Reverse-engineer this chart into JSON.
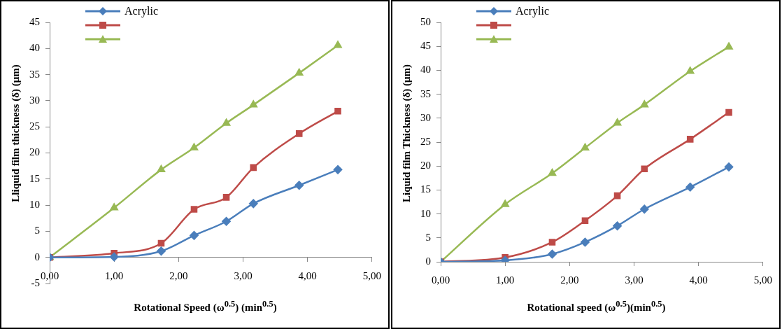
{
  "chart_data": [
    {
      "type": "line",
      "xlabel": "Rotational Speed (ω$^{0.5}$) (min$^{0.5}$)",
      "ylabel": "Lliquid film thickness (δ) (μm)",
      "x": [
        0,
        1,
        1.73,
        2.24,
        2.74,
        3.16,
        3.87,
        4.47
      ],
      "series": [
        {
          "name": "Acrylic",
          "color": "#4a7ebb",
          "marker": "diamond",
          "values": [
            0,
            0.1,
            1.2,
            4.2,
            6.9,
            10.3,
            13.8,
            16.8
          ]
        },
        {
          "color": "#be4b48",
          "marker": "square",
          "values": [
            0,
            0.8,
            2.7,
            9.2,
            11.5,
            17.2,
            23.7,
            28
          ]
        },
        {
          "color": "#98b954",
          "marker": "triangle",
          "values": [
            0,
            9.5,
            16.8,
            21,
            25.7,
            29.2,
            35.3,
            40.6
          ]
        }
      ],
      "xlim": [
        0,
        5
      ],
      "xticks": [
        {
          "value": 0,
          "label": "0,00"
        },
        {
          "value": 1,
          "label": "1,00"
        },
        {
          "value": 2,
          "label": "2,00"
        },
        {
          "value": 3,
          "label": "3,00"
        },
        {
          "value": 4,
          "label": "4,00"
        },
        {
          "value": 5,
          "label": "5,00"
        }
      ],
      "ylim": [
        -5,
        45
      ],
      "yticks": [
        -5,
        0,
        5,
        10,
        15,
        20,
        25,
        30,
        35,
        40,
        45
      ],
      "grid": false,
      "legend": "top left"
    },
    {
      "type": "line",
      "xlabel": "Rotational speed (ω$^{0.5}$)(min$^{0.5}$)",
      "ylabel": "Liquid film Thickness (δ) (μm)",
      "x": [
        0,
        1,
        1.73,
        2.24,
        2.74,
        3.16,
        3.87,
        4.47
      ],
      "series": [
        {
          "name": "Acrylic",
          "color": "#4a7ebb",
          "marker": "diamond",
          "values": [
            0,
            0.3,
            1.6,
            4.1,
            7.5,
            11,
            15.6,
            19.8
          ]
        },
        {
          "color": "#be4b48",
          "marker": "square",
          "values": [
            0,
            0.9,
            4.1,
            8.6,
            13.8,
            19.4,
            25.6,
            31.2
          ]
        },
        {
          "color": "#98b954",
          "marker": "triangle",
          "values": [
            0,
            12,
            18.5,
            23.8,
            29,
            32.8,
            39.8,
            44.9
          ]
        }
      ],
      "xlim": [
        0,
        5
      ],
      "xticks": [
        {
          "value": 0,
          "label": "0,00"
        },
        {
          "value": 1,
          "label": "1,00"
        },
        {
          "value": 2,
          "label": "2,00"
        },
        {
          "value": 3,
          "label": "3,00"
        },
        {
          "value": 4,
          "label": "4,00"
        },
        {
          "value": 5,
          "label": "5,00"
        }
      ],
      "ylim": [
        0,
        50
      ],
      "yticks": [
        0,
        5,
        10,
        15,
        20,
        25,
        30,
        35,
        40,
        45,
        50
      ],
      "grid": false,
      "legend": "top left"
    }
  ]
}
